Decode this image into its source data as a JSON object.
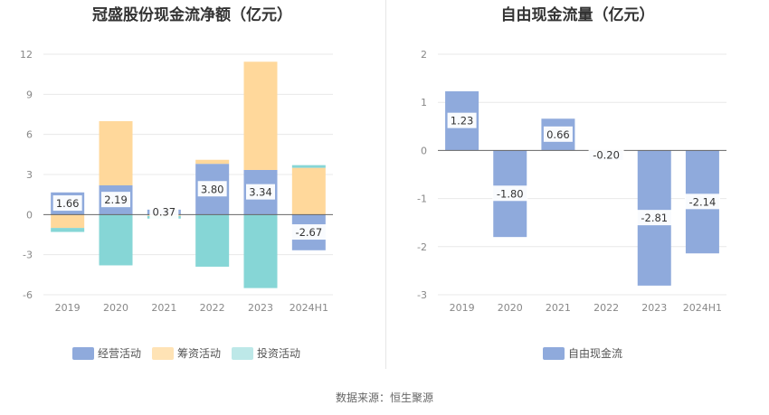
{
  "source_label": "数据来源：恒生聚源",
  "colors": {
    "operating": "#8FAADC",
    "financing": "#FFD89B",
    "investing": "#86D6D6",
    "fcf": "#8FAADC",
    "grid": "#e8e8e8",
    "axis": "#666666"
  },
  "chart_data": [
    {
      "type": "bar",
      "stacked": true,
      "title": "冠盛股份现金流净额（亿元）",
      "categories": [
        "2019",
        "2020",
        "2021",
        "2022",
        "2023",
        "2024H1"
      ],
      "ylim": [
        -6,
        12
      ],
      "yticks": [
        -6,
        -3,
        0,
        3,
        6,
        9,
        12
      ],
      "grid": true,
      "legend_position": "bottom",
      "series": [
        {
          "name": "经营活动",
          "color_key": "operating",
          "values": [
            1.66,
            2.19,
            0.37,
            3.8,
            3.34,
            -2.67
          ],
          "labels": [
            "1.66",
            "2.19",
            "0.37",
            "3.80",
            "3.34",
            "-2.67"
          ]
        },
        {
          "name": "筹资活动",
          "color_key": "financing",
          "values": [
            -1.0,
            4.8,
            -0.1,
            0.3,
            8.1,
            3.5
          ]
        },
        {
          "name": "投资活动",
          "color_key": "investing",
          "values": [
            -0.3,
            -3.8,
            -0.2,
            -3.9,
            -5.5,
            0.2
          ]
        }
      ]
    },
    {
      "type": "bar",
      "title": "自由现金流量（亿元）",
      "categories": [
        "2019",
        "2020",
        "2021",
        "2022",
        "2023",
        "2024H1"
      ],
      "ylim": [
        -3,
        2
      ],
      "yticks": [
        -3,
        -2,
        -1,
        0,
        1,
        2
      ],
      "grid": true,
      "legend_position": "bottom",
      "series": [
        {
          "name": "自由现金流",
          "color_key": "fcf",
          "values": [
            1.23,
            -1.8,
            0.66,
            -0.2,
            -2.81,
            -2.14
          ],
          "labels": [
            "1.23",
            "-1.80",
            "0.66",
            "-0.20",
            "-2.81",
            "-2.14"
          ]
        }
      ]
    }
  ]
}
